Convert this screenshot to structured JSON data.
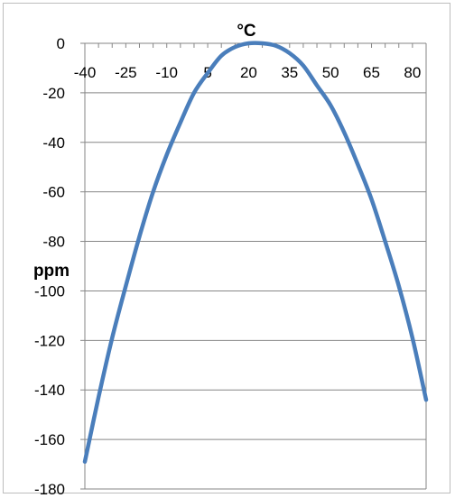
{
  "chart_data": {
    "type": "line",
    "xlabel": "°C",
    "ylabel": "ppm",
    "x_tick_labels": [
      "-40",
      "-25",
      "-10",
      "5",
      "20",
      "35",
      "50",
      "65",
      "80"
    ],
    "x_ticks": [
      -40,
      -25,
      -10,
      5,
      20,
      35,
      50,
      65,
      80
    ],
    "y_tick_labels": [
      "0",
      "-20",
      "-40",
      "-60",
      "-80",
      "-100",
      "-120",
      "-140",
      "-160",
      "-180"
    ],
    "y_ticks": [
      0,
      -20,
      -40,
      -60,
      -80,
      -100,
      -120,
      -140,
      -160,
      -180
    ],
    "xlim": [
      -40,
      85
    ],
    "ylim": [
      -180,
      0
    ],
    "grid": "horizontal",
    "x_axis_position": "top",
    "series": [
      {
        "color": "#4a7ebb",
        "x": [
          -40,
          -35,
          -30,
          -25,
          -20,
          -15,
          -10,
          -5,
          0,
          5,
          10,
          15,
          20,
          25,
          30,
          35,
          40,
          45,
          50,
          55,
          60,
          65,
          70,
          75,
          80,
          85
        ],
        "y": [
          -169,
          -143,
          -119,
          -98,
          -78,
          -60,
          -45,
          -32,
          -20,
          -12,
          -5,
          -1.5,
          0,
          0,
          -1,
          -4,
          -9,
          -17,
          -25,
          -36,
          -49,
          -63,
          -80,
          -98,
          -119,
          -144
        ]
      }
    ]
  }
}
